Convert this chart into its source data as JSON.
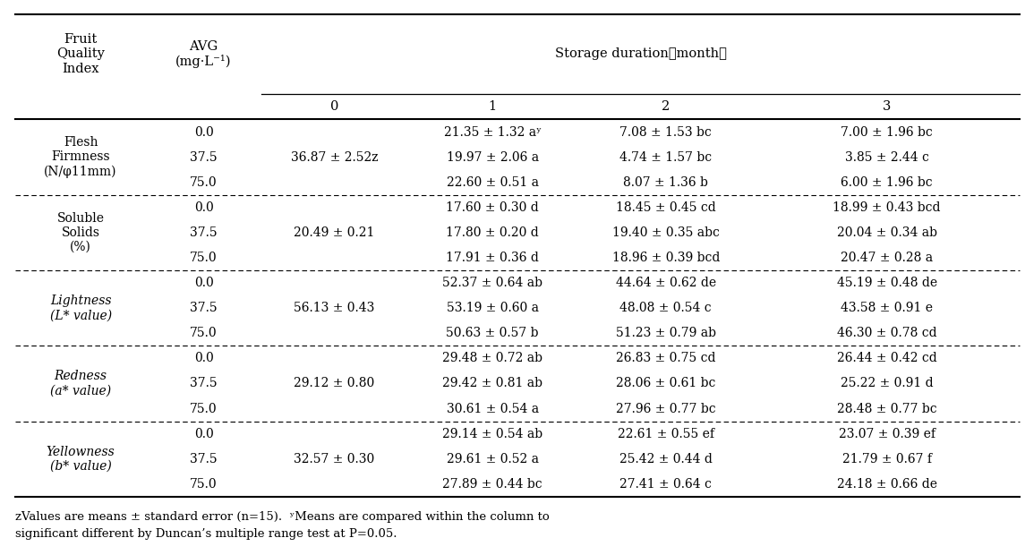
{
  "rows": [
    {
      "index_label": "Flesh\nFirmness\n(N/φ11mm)",
      "avg_values": [
        "0.0",
        "37.5",
        "75.0"
      ],
      "avg_merged": "36.87 ± 2.52ᴢ",
      "col1": [
        "21.35 ± 1.32 aʸ",
        "19.97 ± 2.06 a",
        "22.60 ± 0.51 a"
      ],
      "col2": [
        "7.08 ± 1.53 bc",
        "4.74 ± 1.57 bc",
        "8.07 ± 1.36 b"
      ],
      "col3": [
        "7.00 ± 1.96 bc",
        "3.85 ± 2.44 c",
        "6.00 ± 1.96 bc"
      ]
    },
    {
      "index_label": "Soluble\nSolids\n(%)",
      "avg_values": [
        "0.0",
        "37.5",
        "75.0"
      ],
      "avg_merged": "20.49 ± 0.21",
      "col1": [
        "17.60 ± 0.30 d",
        "17.80 ± 0.20 d",
        "17.91 ± 0.36 d"
      ],
      "col2": [
        "18.45 ± 0.45 cd",
        "19.40 ± 0.35 abc",
        "18.96 ± 0.39 bcd"
      ],
      "col3": [
        "18.99 ± 0.43 bcd",
        "20.04 ± 0.34 ab",
        "20.47 ± 0.28 a"
      ]
    },
    {
      "index_label": "Lightness\n(L* value)",
      "avg_values": [
        "0.0",
        "37.5",
        "75.0"
      ],
      "avg_merged": "56.13 ± 0.43",
      "col1": [
        "52.37 ± 0.64 ab",
        "53.19 ± 0.60 a",
        "50.63 ± 0.57 b"
      ],
      "col2": [
        "44.64 ± 0.62 de",
        "48.08 ± 0.54 c",
        "51.23 ± 0.79 ab"
      ],
      "col3": [
        "45.19 ± 0.48 de",
        "43.58 ± 0.91 e",
        "46.30 ± 0.78 cd"
      ]
    },
    {
      "index_label": "Redness\n(a* value)",
      "avg_values": [
        "0.0",
        "37.5",
        "75.0"
      ],
      "avg_merged": "29.12 ± 0.80",
      "col1": [
        "29.48 ± 0.72 ab",
        "29.42 ± 0.81 ab",
        "30.61 ± 0.54 a"
      ],
      "col2": [
        "26.83 ± 0.75 cd",
        "28.06 ± 0.61 bc",
        "27.96 ± 0.77 bc"
      ],
      "col3": [
        "26.44 ± 0.42 cd",
        "25.22 ± 0.91 d",
        "28.48 ± 0.77 bc"
      ]
    },
    {
      "index_label": "Yellowness\n(b* value)",
      "avg_values": [
        "0.0",
        "37.5",
        "75.0"
      ],
      "avg_merged": "32.57 ± 0.30",
      "col1": [
        "29.14 ± 0.54 ab",
        "29.61 ± 0.52 a",
        "27.89 ± 0.44 bc"
      ],
      "col2": [
        "22.61 ± 0.55 ef",
        "25.42 ± 0.44 d",
        "27.41 ± 0.64 c"
      ],
      "col3": [
        "23.07 ± 0.39 ef",
        "21.79 ± 0.67 f",
        "24.18 ± 0.66 de"
      ]
    }
  ],
  "index_labels_italic": [
    false,
    false,
    true,
    true,
    true
  ],
  "footnote_line1": "ᴢValues are means ± standard error (n=15).  ʸMeans are compared within the column to",
  "footnote_line2": "significant different by Duncan’s multiple range test at P=0.05.",
  "bg_color": "#ffffff",
  "text_color": "#000000",
  "font_size": 10.0,
  "header_font_size": 10.5
}
